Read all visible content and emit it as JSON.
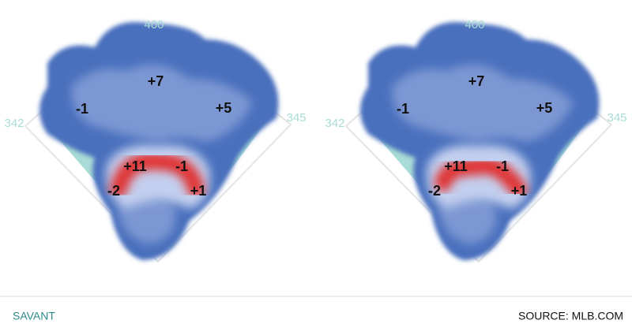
{
  "panels": [
    {
      "distances": {
        "center": "400",
        "left": "342",
        "right": "345"
      },
      "zones": [
        "+7",
        "-1",
        "+5",
        "+11",
        "-1",
        "-2",
        "+1"
      ]
    },
    {
      "distances": {
        "center": "400",
        "left": "342",
        "right": "345"
      },
      "zones": [
        "+7",
        "-1",
        "+5",
        "+11",
        "-1",
        "-2",
        "+1"
      ]
    }
  ],
  "footer": {
    "brand": "SAVANT",
    "source": "SOURCE: MLB.COM"
  }
}
